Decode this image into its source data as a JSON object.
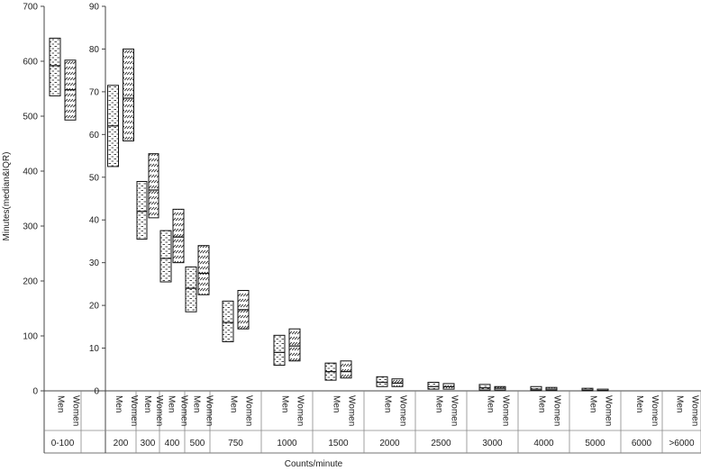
{
  "chart_data": {
    "type": "boxplot",
    "xlabel": "Counts/minute",
    "ylabel": "Minutes(median&IQR)",
    "series": [
      {
        "name": "Men",
        "pattern": "dots"
      },
      {
        "name": "Women",
        "pattern": "hatch"
      }
    ],
    "panels": [
      {
        "id": "left",
        "ylim": [
          0,
          700
        ],
        "yticks": [
          0,
          100,
          200,
          300,
          400,
          500,
          600,
          700
        ],
        "categories": [
          {
            "label": "0-100",
            "men": {
              "q1": 537,
              "median": 592,
              "q3": 642
            },
            "women": {
              "q1": 493,
              "median": 548,
              "q3": 602
            }
          }
        ]
      },
      {
        "id": "right",
        "ylim": [
          0,
          90
        ],
        "yticks": [
          0,
          10,
          20,
          30,
          40,
          50,
          60,
          70,
          80,
          90
        ],
        "categories": [
          {
            "label": "200",
            "men": {
              "q1": 52.5,
              "median": 62,
              "q3": 71.5
            },
            "women": {
              "q1": 58.5,
              "median": 68.5,
              "q3": 80
            }
          },
          {
            "label": "300",
            "men": {
              "q1": 35.5,
              "median": 42,
              "q3": 49
            },
            "women": {
              "q1": 40.5,
              "median": 47,
              "q3": 55.5
            }
          },
          {
            "label": "400",
            "men": {
              "q1": 25.5,
              "median": 31,
              "q3": 37.5
            },
            "women": {
              "q1": 30,
              "median": 36,
              "q3": 42.5
            }
          },
          {
            "label": "500",
            "men": {
              "q1": 18.5,
              "median": 24,
              "q3": 29
            },
            "women": {
              "q1": 22.5,
              "median": 27.5,
              "q3": 34
            }
          },
          {
            "label": "750",
            "men": {
              "q1": 11.5,
              "median": 16,
              "q3": 21
            },
            "women": {
              "q1": 14.5,
              "median": 19,
              "q3": 23.5
            }
          },
          {
            "label": "1000",
            "men": {
              "q1": 6,
              "median": 9,
              "q3": 13
            },
            "women": {
              "q1": 7,
              "median": 10.5,
              "q3": 14.5
            }
          },
          {
            "label": "1500",
            "men": {
              "q1": 2.5,
              "median": 4.5,
              "q3": 6.5
            },
            "women": {
              "q1": 3,
              "median": 4.5,
              "q3": 7
            }
          },
          {
            "label": "2000",
            "men": {
              "q1": 1,
              "median": 2,
              "q3": 3.3
            },
            "women": {
              "q1": 1,
              "median": 1.8,
              "q3": 2.8
            }
          },
          {
            "label": "2500",
            "men": {
              "q1": 0.4,
              "median": 1,
              "q3": 2
            },
            "women": {
              "q1": 0.4,
              "median": 1,
              "q3": 1.7
            }
          },
          {
            "label": "3000",
            "men": {
              "q1": 0.2,
              "median": 0.7,
              "q3": 1.5
            },
            "women": {
              "q1": 0.2,
              "median": 0.6,
              "q3": 1
            }
          },
          {
            "label": "4000",
            "men": {
              "q1": 0.1,
              "median": 0.4,
              "q3": 1
            },
            "women": {
              "q1": 0.1,
              "median": 0.4,
              "q3": 0.8
            }
          },
          {
            "label": "5000",
            "men": {
              "q1": 0,
              "median": 0.2,
              "q3": 0.6
            },
            "women": {
              "q1": 0,
              "median": 0.1,
              "q3": 0.4
            }
          },
          {
            "label": "6000",
            "men": null,
            "women": null
          },
          {
            "label": ">6000",
            "men": null,
            "women": null
          }
        ]
      }
    ]
  }
}
